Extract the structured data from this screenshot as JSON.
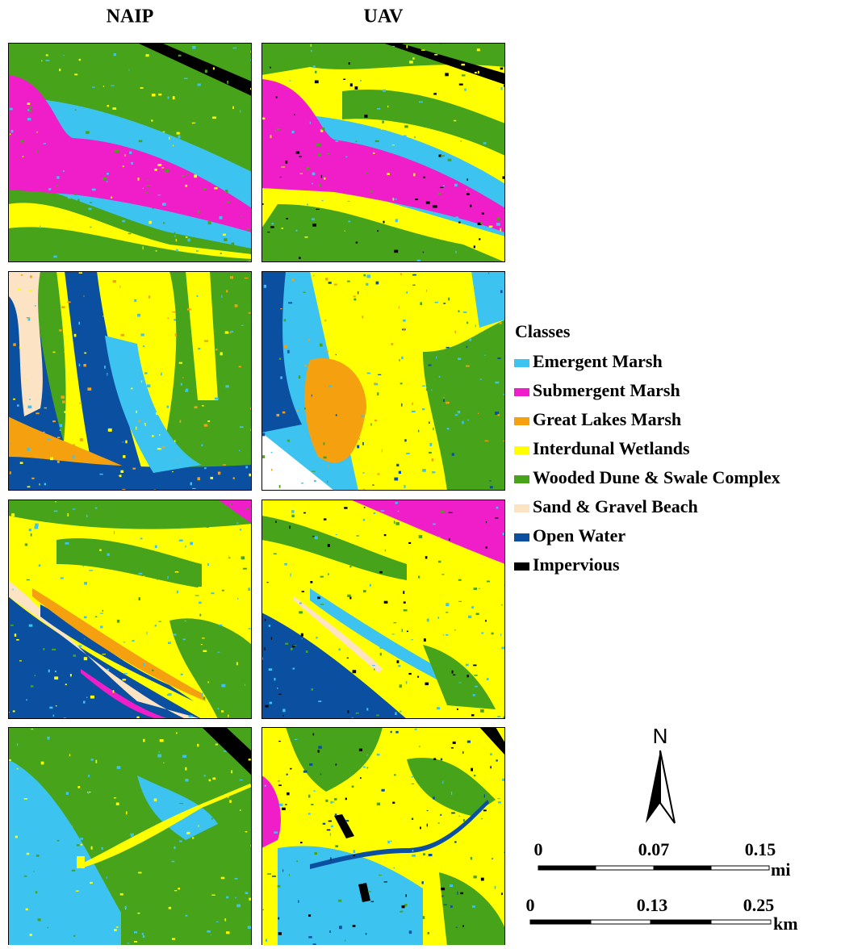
{
  "columns": [
    "NAIP",
    "UAV"
  ],
  "legend": {
    "title": "Classes",
    "items": [
      {
        "label": "Emergent Marsh",
        "color": "#3cc3f0"
      },
      {
        "label": "Submergent Marsh",
        "color": "#f01ec8"
      },
      {
        "label": "Great Lakes Marsh",
        "color": "#f5a00f"
      },
      {
        "label": "Interdunal Wetlands",
        "color": "#ffff00"
      },
      {
        "label": "Wooded Dune & Swale Complex",
        "color": "#46a31a"
      },
      {
        "label": "Sand & Gravel Beach",
        "color": "#fbe3c4"
      },
      {
        "label": "Open Water",
        "color": "#0a4fa0"
      },
      {
        "label": "Impervious",
        "color": "#000000"
      }
    ]
  },
  "north_arrow": {
    "label": "N"
  },
  "scale_bars": [
    {
      "unit": "mi",
      "labels": [
        0,
        0.07,
        0.15
      ]
    },
    {
      "unit": "km",
      "labels": [
        0,
        0.13,
        0.25
      ]
    }
  ]
}
